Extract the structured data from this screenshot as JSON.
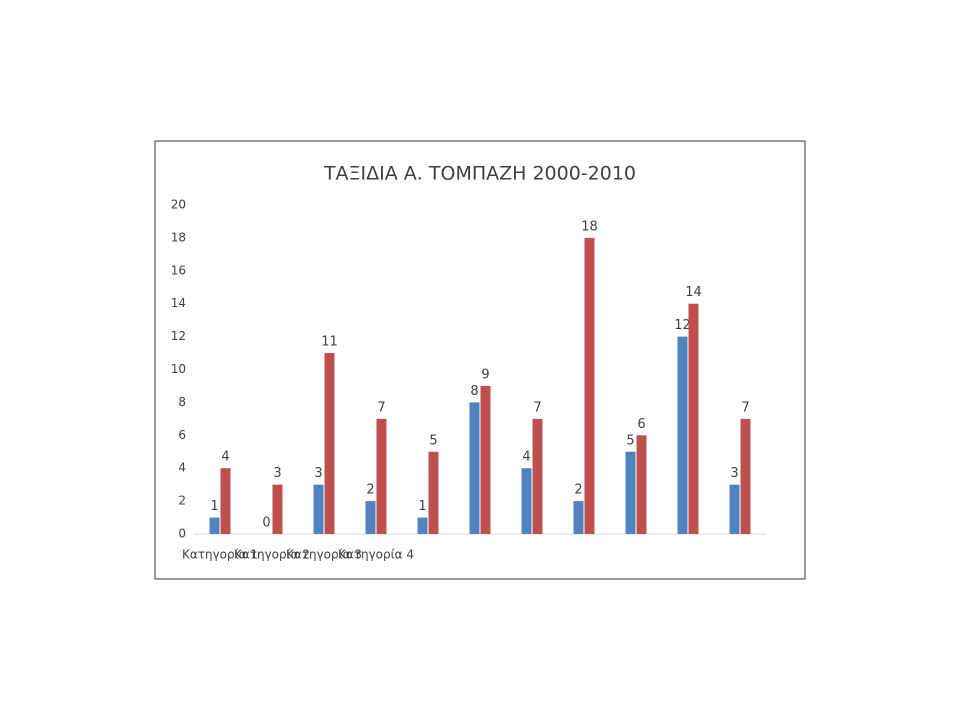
{
  "chart_data": {
    "type": "bar",
    "title": "ΤΑΞΙΔΙΑ Α. ΤΟΜΠΑΖΗ 2000-2010",
    "categories": [
      "Κατηγορία 1",
      "Κατηγορία 2",
      "Κατηγορία 3",
      "Κατηγορία 4",
      null,
      null,
      null,
      null,
      null,
      null,
      null
    ],
    "series": [
      {
        "color": "#4f81bd",
        "values": [
          1,
          0,
          3,
          2,
          1,
          8,
          4,
          2,
          5,
          12,
          3
        ]
      },
      {
        "color": "#c0504d",
        "values": [
          4,
          3,
          11,
          7,
          5,
          9,
          7,
          18,
          6,
          14,
          7
        ]
      }
    ],
    "ylim": [
      0,
      20
    ],
    "yticks": [
      0,
      2,
      4,
      6,
      8,
      10,
      12,
      14,
      16,
      18,
      20
    ],
    "grid": false,
    "data_labels": true
  }
}
